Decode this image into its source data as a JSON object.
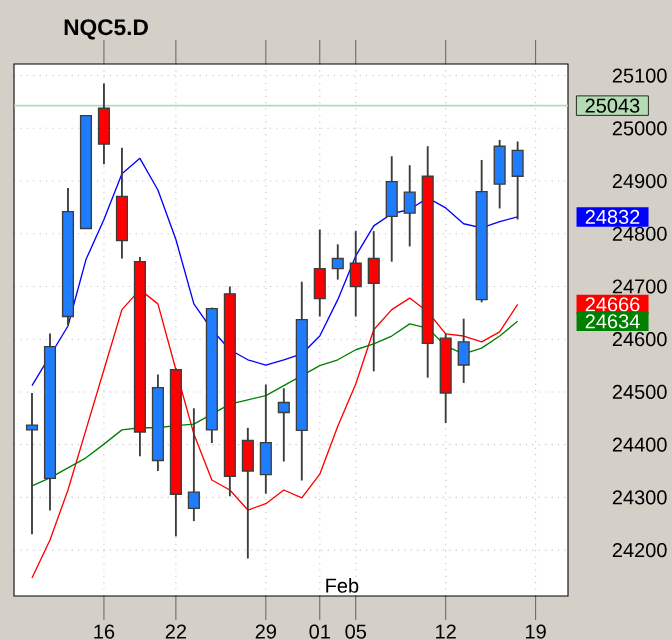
{
  "chart_data": {
    "type": "candlestick",
    "title": "NQC5.D",
    "categories": [
      null,
      null,
      null,
      null,
      "16",
      null,
      null,
      null,
      "22",
      null,
      null,
      null,
      null,
      "29",
      null,
      null,
      "01",
      null,
      "05",
      null,
      null,
      null,
      null,
      "12",
      null,
      null,
      null,
      null,
      "19"
    ],
    "ohlc": [
      [
        24428,
        24498,
        24230,
        24437
      ],
      [
        24336,
        24611,
        24275,
        24586
      ],
      [
        24643,
        24887,
        24627,
        24842
      ],
      [
        24810,
        25024,
        24810,
        25024
      ],
      [
        25038,
        25085,
        24932,
        24970
      ],
      [
        24871,
        24963,
        24753,
        24787
      ],
      [
        24747,
        24756,
        24378,
        24424
      ],
      [
        24370,
        24533,
        24350,
        24508
      ],
      [
        24542,
        24545,
        24226,
        24306
      ],
      [
        24279,
        24469,
        24255,
        24310
      ],
      [
        24428,
        24660,
        24403,
        24658
      ],
      [
        24686,
        24700,
        24302,
        24340
      ],
      [
        24408,
        24432,
        24184,
        24350
      ],
      [
        24343,
        24514,
        24307,
        24404
      ],
      [
        24461,
        24507,
        24368,
        24480
      ],
      [
        24427,
        24709,
        24332,
        24637
      ],
      [
        24734,
        24808,
        24643,
        24677
      ],
      [
        24734,
        24780,
        24713,
        24753
      ],
      [
        24744,
        24805,
        24643,
        24700
      ],
      [
        24753,
        24805,
        24539,
        24706
      ],
      [
        24833,
        24947,
        24747,
        24899
      ],
      [
        24839,
        24930,
        24776,
        24879
      ],
      [
        24909,
        24966,
        24527,
        24592
      ],
      [
        24602,
        24611,
        24441,
        24498
      ],
      [
        24551,
        24639,
        24517,
        24595
      ],
      [
        24675,
        24940,
        24670,
        24880
      ],
      [
        24894,
        24978,
        24848,
        24966
      ],
      [
        24909,
        24975,
        24827,
        24958
      ],
      null
    ],
    "colors": [
      "#1e7cff",
      "#1e7cff",
      "#1e7cff",
      "#1e7cff",
      "#ff0000",
      "#ff0000",
      "#ff0000",
      "#1e7cff",
      "#ff0000",
      "#1e7cff",
      "#1e7cff",
      "#ff0000",
      "#ff0000",
      "#1e7cff",
      "#1e7cff",
      "#1e7cff",
      "#ff0000",
      "#1e7cff",
      "#ff0000",
      "#ff0000",
      "#1e7cff",
      "#1e7cff",
      "#ff0000",
      "#ff0000",
      "#1e7cff",
      "#1e7cff",
      "#1e7cff",
      "#1e7cff",
      null
    ],
    "series": [
      {
        "type": "line",
        "color": "#0000ff",
        "values": [
          24512,
          null,
          24625,
          24751,
          24827,
          24914,
          24943,
          24883,
          24789,
          24667,
          24618,
          24580,
          24561,
          24551,
          24561,
          24572,
          24606,
          24675,
          24758,
          24815,
          24838,
          24846,
          24868,
          24849,
          24819,
          24811,
          24823,
          24832,
          null
        ]
      },
      {
        "type": "line",
        "color": "#ff0000",
        "values": [
          24147,
          24219,
          24314,
          24428,
          24542,
          24656,
          24694,
          24667,
          24542,
          24420,
          24333,
          24314,
          24276,
          24288,
          24314,
          24299,
          24344,
          24435,
          24515,
          24618,
          24656,
          24678,
          24652,
          24610,
          24606,
          24595,
          24614,
          24666,
          null
        ]
      },
      {
        "type": "line",
        "color": "#008000",
        "values": [
          24322,
          24337,
          24356,
          24375,
          24401,
          24428,
          24432,
          24432,
          24436,
          24439,
          24458,
          24477,
          24485,
          24493,
          24512,
          24531,
          24550,
          24561,
          24580,
          24591,
          24606,
          24629,
          24621,
          24587,
          24572,
          24583,
          24606,
          24634,
          null
        ]
      }
    ],
    "ylim": [
      24113,
      25122
    ],
    "yticks": [
      24200,
      24300,
      24400,
      24500,
      24600,
      24700,
      24800,
      24900,
      25000,
      25100
    ],
    "ref_lines": [
      {
        "axis": "y",
        "value": 25043,
        "label": "25043",
        "color": "#b4dcb4"
      }
    ],
    "annotations": [
      "Feb",
      "24832",
      "24666",
      "24634"
    ],
    "grid": true,
    "line_style": "solid"
  }
}
